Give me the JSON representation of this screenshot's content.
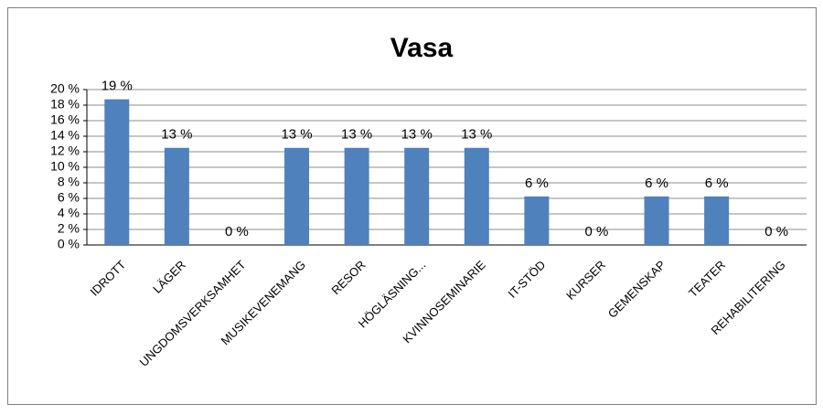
{
  "chart_data": {
    "type": "bar",
    "title": "Vasa",
    "categories": [
      "IDROTT",
      "LÄGER",
      "UNGDOMSVERKSAMHET",
      "MUSIKEVENEMANG",
      "RESOR",
      "HÖGLÄSNING...",
      "KVINNOSEMINARIE",
      "IT-STÖD",
      "KURSER",
      "GEMENSKAP",
      "TEATER",
      "REHABILITERING"
    ],
    "values": [
      18.75,
      12.5,
      0,
      12.5,
      12.5,
      12.5,
      12.5,
      6.25,
      0,
      6.25,
      6.25,
      0
    ],
    "value_labels": [
      "19 %",
      "13 %",
      "0 %",
      "13 %",
      "13 %",
      "13 %",
      "13 %",
      "6 %",
      "0 %",
      "6 %",
      "6 %",
      "0 %"
    ],
    "color": "#4f81bd",
    "ylim": [
      0,
      20
    ],
    "yticks": [
      {
        "value": 0,
        "label": "0 %"
      },
      {
        "value": 2,
        "label": "2 %"
      },
      {
        "value": 4,
        "label": "4 %"
      },
      {
        "value": 6,
        "label": "6 %"
      },
      {
        "value": 8,
        "label": "8 %"
      },
      {
        "value": 10,
        "label": "10 %"
      },
      {
        "value": 12,
        "label": "12 %"
      },
      {
        "value": 14,
        "label": "14 %"
      },
      {
        "value": 16,
        "label": "16 %"
      },
      {
        "value": 18,
        "label": "18 %"
      },
      {
        "value": 20,
        "label": "20 %"
      }
    ],
    "grid": true
  }
}
